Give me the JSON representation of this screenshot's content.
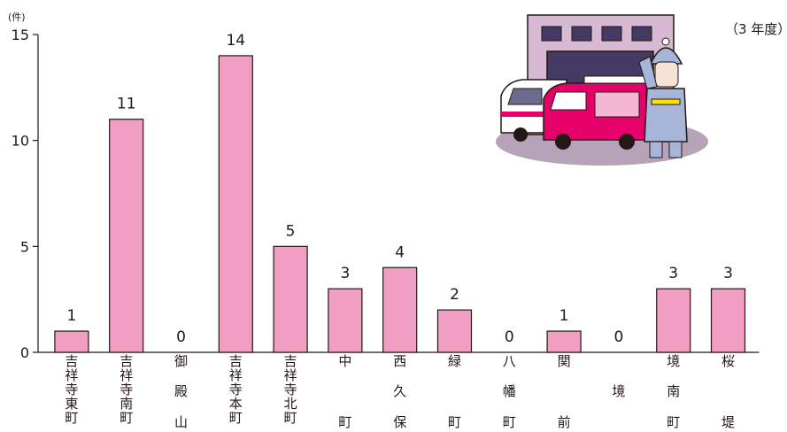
{
  "chart_data": {
    "type": "bar",
    "unit": "(件)",
    "year_note": "（3 年度）",
    "ylim": [
      0,
      15
    ],
    "yticks": [
      0,
      5,
      10,
      15
    ],
    "categories": [
      "吉祥寺東町",
      "吉祥寺南町",
      "御殿山",
      "吉祥寺本町",
      "吉祥寺北町",
      "中町",
      "西久保",
      "緑町",
      "八幡町",
      "関前",
      "境",
      "境南町",
      "桜堤"
    ],
    "values": [
      1,
      11,
      0,
      14,
      5,
      3,
      4,
      2,
      0,
      1,
      0,
      3,
      3
    ],
    "bar_color": "#f19ec2",
    "label_rows": [
      [
        "吉",
        "祥",
        "寺",
        "東",
        "町"
      ],
      [
        "吉",
        "祥",
        "寺",
        "南",
        "町"
      ],
      [
        "御",
        "",
        "殿",
        "",
        "山"
      ],
      [
        "吉",
        "祥",
        "寺",
        "本",
        "町"
      ],
      [
        "吉",
        "祥",
        "寺",
        "北",
        "町"
      ],
      [
        "中",
        "",
        "",
        "",
        "町"
      ],
      [
        "西",
        "",
        "久",
        "",
        "保"
      ],
      [
        "緑",
        "",
        "",
        "",
        "町"
      ],
      [
        "八",
        "",
        "幡",
        "",
        "町"
      ],
      [
        "関",
        "",
        "",
        "",
        "前"
      ],
      [
        "",
        "",
        "境",
        "",
        ""
      ],
      [
        "境",
        "",
        "南",
        "",
        "町"
      ],
      [
        "桜",
        "",
        "",
        "",
        "堤"
      ]
    ]
  },
  "illustration": {
    "name": "fire-station-illustration",
    "colors": {
      "building": "#d7b9d4",
      "building_shade": "#b9a0b7",
      "window": "#453a63",
      "ground": "#b7a3b8",
      "truck_red": "#e5006a",
      "truck_outline": "#231815",
      "firefighter": "#a6b5d8"
    }
  }
}
